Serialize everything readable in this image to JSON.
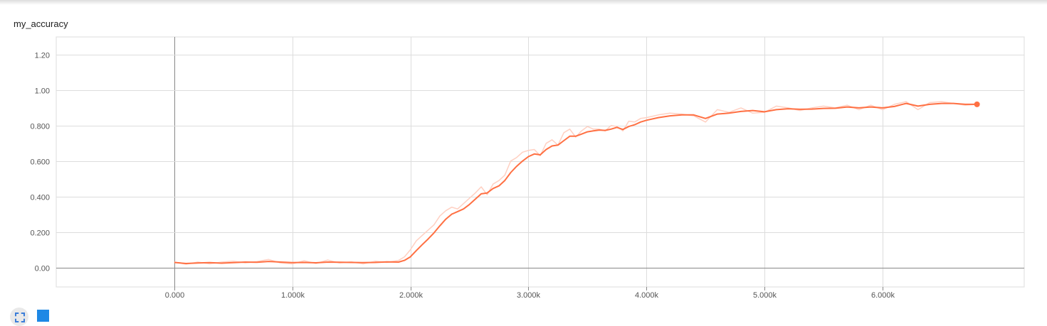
{
  "chart_data": {
    "type": "line",
    "title": "my_accuracy",
    "xlabel": "",
    "ylabel": "",
    "xlim": [
      -1000,
      7200
    ],
    "ylim": [
      -0.11,
      1.3
    ],
    "x_ticks": [
      0,
      1000,
      2000,
      3000,
      4000,
      5000,
      6000
    ],
    "x_tick_labels": [
      "0.000",
      "1.000k",
      "2.000k",
      "3.000k",
      "4.000k",
      "5.000k",
      "6.000k"
    ],
    "y_ticks": [
      0,
      0.2,
      0.4,
      0.6,
      0.8,
      1.0,
      1.2
    ],
    "y_tick_labels": [
      "0.00",
      "0.200",
      "0.400",
      "0.600",
      "0.800",
      "1.00",
      "1.20"
    ],
    "grid": true,
    "colors": {
      "smoothed": "#ff7043",
      "raw": "#ffd0c2",
      "grid": "#dddddd",
      "axis": "#888888"
    },
    "series": [
      {
        "role": "smoothed",
        "x": [
          0,
          100,
          200,
          300,
          400,
          500,
          600,
          700,
          800,
          900,
          1000,
          1100,
          1200,
          1300,
          1400,
          1500,
          1600,
          1700,
          1800,
          1900,
          1950,
          2000,
          2050,
          2100,
          2150,
          2200,
          2250,
          2300,
          2350,
          2400,
          2450,
          2500,
          2550,
          2600,
          2650,
          2700,
          2750,
          2800,
          2850,
          2900,
          2950,
          3000,
          3050,
          3100,
          3150,
          3200,
          3250,
          3300,
          3350,
          3400,
          3450,
          3500,
          3550,
          3600,
          3650,
          3700,
          3750,
          3800,
          3850,
          3900,
          3950,
          4000,
          4100,
          4200,
          4300,
          4400,
          4500,
          4600,
          4700,
          4800,
          4900,
          5000,
          5100,
          5200,
          5300,
          5400,
          5500,
          5600,
          5700,
          5800,
          5900,
          6000,
          6100,
          6200,
          6300,
          6400,
          6500,
          6600,
          6700,
          6800
        ],
        "y": [
          0.028,
          0.022,
          0.025,
          0.027,
          0.024,
          0.027,
          0.03,
          0.029,
          0.034,
          0.03,
          0.027,
          0.028,
          0.026,
          0.03,
          0.029,
          0.028,
          0.027,
          0.028,
          0.031,
          0.03,
          0.04,
          0.06,
          0.095,
          0.128,
          0.16,
          0.195,
          0.235,
          0.272,
          0.3,
          0.315,
          0.33,
          0.355,
          0.385,
          0.415,
          0.42,
          0.445,
          0.46,
          0.49,
          0.535,
          0.57,
          0.6,
          0.625,
          0.64,
          0.635,
          0.665,
          0.685,
          0.69,
          0.715,
          0.74,
          0.74,
          0.752,
          0.765,
          0.77,
          0.775,
          0.773,
          0.78,
          0.79,
          0.778,
          0.795,
          0.805,
          0.82,
          0.83,
          0.845,
          0.855,
          0.86,
          0.86,
          0.84,
          0.865,
          0.87,
          0.88,
          0.885,
          0.878,
          0.89,
          0.895,
          0.892,
          0.893,
          0.897,
          0.898,
          0.905,
          0.9,
          0.905,
          0.9,
          0.908,
          0.925,
          0.91,
          0.92,
          0.925,
          0.925,
          0.92,
          0.92
        ]
      },
      {
        "role": "raw",
        "x": [
          0,
          100,
          200,
          300,
          400,
          500,
          600,
          700,
          800,
          900,
          1000,
          1100,
          1200,
          1300,
          1400,
          1500,
          1600,
          1700,
          1800,
          1900,
          1950,
          2000,
          2050,
          2100,
          2150,
          2200,
          2250,
          2300,
          2350,
          2400,
          2450,
          2500,
          2550,
          2600,
          2650,
          2700,
          2750,
          2800,
          2850,
          2900,
          2950,
          3000,
          3050,
          3100,
          3150,
          3200,
          3250,
          3300,
          3350,
          3400,
          3450,
          3500,
          3550,
          3600,
          3650,
          3700,
          3750,
          3800,
          3850,
          3900,
          3950,
          4000,
          4100,
          4200,
          4300,
          4400,
          4500,
          4600,
          4700,
          4800,
          4900,
          5000,
          5100,
          5200,
          5300,
          5400,
          5500,
          5600,
          5700,
          5800,
          5900,
          6000,
          6100,
          6200,
          6300,
          6400,
          6500,
          6600,
          6700,
          6800
        ],
        "y": [
          0.03,
          0.018,
          0.03,
          0.02,
          0.03,
          0.035,
          0.026,
          0.033,
          0.045,
          0.025,
          0.02,
          0.038,
          0.022,
          0.042,
          0.025,
          0.032,
          0.02,
          0.035,
          0.028,
          0.04,
          0.06,
          0.1,
          0.15,
          0.18,
          0.21,
          0.24,
          0.29,
          0.32,
          0.34,
          0.33,
          0.36,
          0.39,
          0.42,
          0.455,
          0.41,
          0.47,
          0.49,
          0.52,
          0.6,
          0.62,
          0.65,
          0.66,
          0.665,
          0.63,
          0.7,
          0.72,
          0.69,
          0.76,
          0.78,
          0.735,
          0.77,
          0.795,
          0.78,
          0.78,
          0.77,
          0.8,
          0.795,
          0.77,
          0.825,
          0.82,
          0.84,
          0.845,
          0.86,
          0.87,
          0.865,
          0.855,
          0.82,
          0.89,
          0.875,
          0.9,
          0.87,
          0.875,
          0.91,
          0.9,
          0.885,
          0.9,
          0.91,
          0.9,
          0.915,
          0.89,
          0.915,
          0.89,
          0.92,
          0.935,
          0.89,
          0.93,
          0.935,
          0.925,
          0.915,
          0.92
        ]
      }
    ]
  },
  "icons": {
    "fit": "fit-to-data-icon",
    "toggle": "toggle-y-axis-icon"
  }
}
